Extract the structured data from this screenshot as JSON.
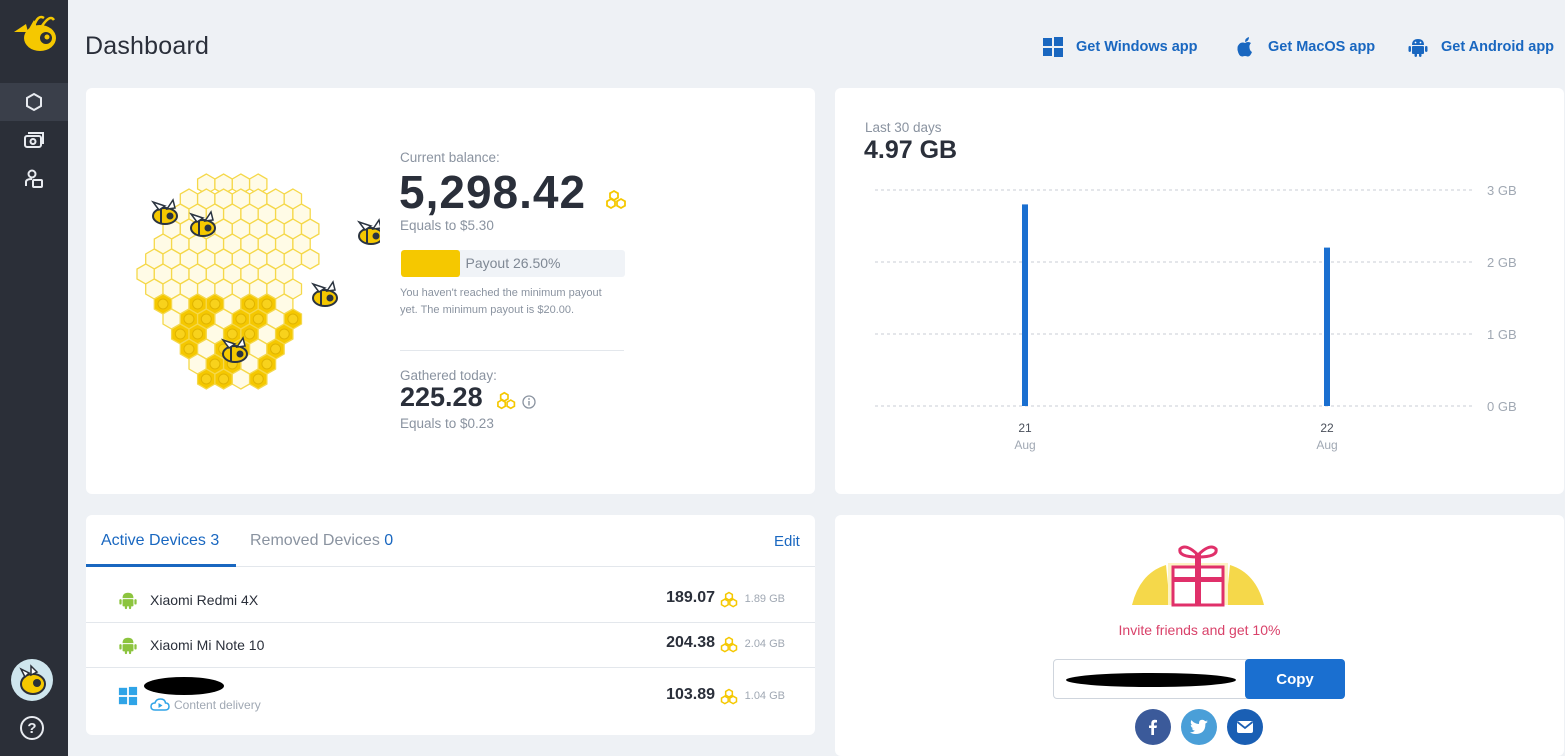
{
  "header": {
    "title": "Dashboard",
    "apps": [
      {
        "label": "Get Windows app",
        "icon": "windows-icon"
      },
      {
        "label": "Get MacOS app",
        "icon": "apple-icon"
      },
      {
        "label": "Get Android app",
        "icon": "android-icon"
      }
    ]
  },
  "sidebar": {
    "items": [
      {
        "icon": "hexagon-icon",
        "active": true
      },
      {
        "icon": "cash-icon",
        "active": false
      },
      {
        "icon": "users-icon",
        "active": false
      }
    ],
    "help_label": "?"
  },
  "balance": {
    "label": "Current balance:",
    "value": "5,298.42",
    "equals": "Equals to $5.30",
    "payout_label": "Payout 26.50%",
    "payout_fraction": 0.265,
    "payout_note": "You haven't reached the minimum payout yet. The minimum payout is $20.00.",
    "gathered_label": "Gathered today:",
    "gathered_value": "225.28",
    "gathered_equals": "Equals to $0.23"
  },
  "chart_data": {
    "type": "bar",
    "period_label": "Last 30 days",
    "total": "4.97 GB",
    "categories": [
      "21 Aug",
      "22 Aug"
    ],
    "category_days": [
      "21",
      "22"
    ],
    "category_months": [
      "Aug",
      "Aug"
    ],
    "values": [
      2.8,
      2.2
    ],
    "unit": "GB",
    "ylim": [
      0,
      3
    ],
    "yticks": [
      "0 GB",
      "1 GB",
      "2 GB",
      "3 GB"
    ],
    "grid": true,
    "bar_color": "#1a6fd0"
  },
  "devices": {
    "tabs": [
      {
        "label": "Active Devices",
        "count": "3",
        "active": true
      },
      {
        "label": "Removed Devices",
        "count": "0",
        "active": false
      }
    ],
    "edit_label": "Edit",
    "rows": [
      {
        "name": "Xiaomi Redmi 4X",
        "icon": "android-icon",
        "amount": "189.07",
        "size": "1.89 GB"
      },
      {
        "name": "Xiaomi Mi Note 10",
        "icon": "android-icon",
        "amount": "204.38",
        "size": "2.04 GB"
      },
      {
        "name": "",
        "icon": "windows-icon",
        "sublabel": "Content delivery",
        "amount": "103.89",
        "size": "1.04 GB"
      }
    ]
  },
  "invite": {
    "text": "Invite friends and get 10%",
    "copy_label": "Copy",
    "social": [
      "facebook-icon",
      "twitter-icon",
      "email-icon"
    ]
  },
  "colors": {
    "sidebar": "#2b2f38",
    "accent": "#1967c0",
    "honey": "#f5c800",
    "invite": "#d9426a"
  }
}
